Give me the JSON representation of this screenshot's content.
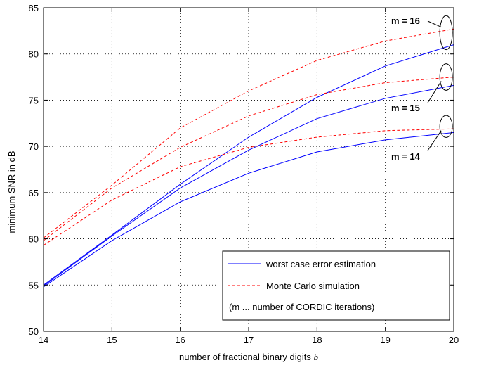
{
  "chart_data": {
    "type": "line",
    "xlabel": "number of fractional binary digits",
    "xlabel_symbol": "b",
    "ylabel": "minimum SNR in dB",
    "xlim": [
      14,
      20
    ],
    "ylim": [
      50,
      85
    ],
    "xticks": [
      14,
      15,
      16,
      17,
      18,
      19,
      20
    ],
    "yticks": [
      50,
      55,
      60,
      65,
      70,
      75,
      80,
      85
    ],
    "grid": true,
    "legend_position": "bottom-right",
    "x": [
      14,
      15,
      16,
      17,
      18,
      19,
      20
    ],
    "series": [
      {
        "group": "worst case error estimation",
        "m": 14,
        "values": [
          54.8,
          59.8,
          64.0,
          67.1,
          69.4,
          70.7,
          71.5
        ]
      },
      {
        "group": "worst case error estimation",
        "m": 15,
        "values": [
          54.9,
          60.3,
          65.5,
          69.6,
          73.0,
          75.2,
          76.6
        ]
      },
      {
        "group": "worst case error estimation",
        "m": 16,
        "values": [
          55.0,
          60.4,
          65.9,
          71.0,
          75.3,
          78.7,
          81.0
        ]
      },
      {
        "group": "Monte Carlo simulation",
        "m": 14,
        "values": [
          59.3,
          64.2,
          67.8,
          69.9,
          71.0,
          71.7,
          71.9
        ]
      },
      {
        "group": "Monte Carlo simulation",
        "m": 15,
        "values": [
          59.8,
          65.5,
          69.9,
          73.3,
          75.6,
          76.9,
          77.5
        ]
      },
      {
        "group": "Monte Carlo simulation",
        "m": 16,
        "values": [
          60.1,
          65.8,
          72.0,
          76.0,
          79.3,
          81.4,
          82.7
        ]
      }
    ],
    "colors": {
      "worst case error estimation": "#0000ff",
      "Monte Carlo simulation": "#ff0000"
    },
    "legend": [
      {
        "label": "worst case error estimation",
        "style": "solid"
      },
      {
        "label": "Monte Carlo simulation",
        "style": "dashed"
      },
      {
        "label": "(m ... number of CORDIC iterations)",
        "style": "none"
      }
    ],
    "annotations": [
      {
        "text": "m = 16",
        "m": 16
      },
      {
        "text": "m = 15",
        "m": 15
      },
      {
        "text": "m = 14",
        "m": 14
      }
    ]
  }
}
